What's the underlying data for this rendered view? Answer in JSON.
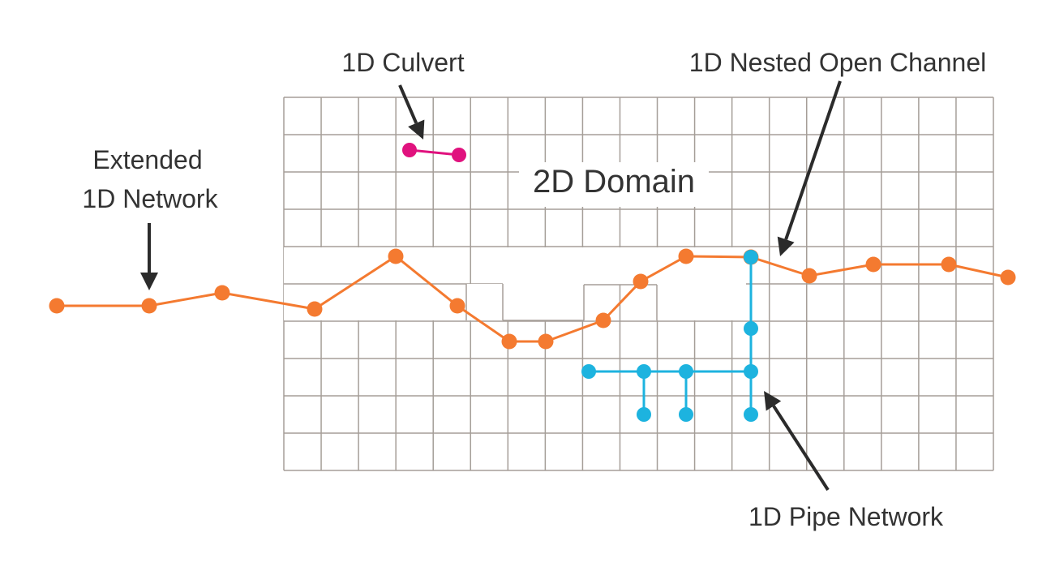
{
  "labels": {
    "culvert": "1D Culvert",
    "nested": "1D Nested Open Channel",
    "extended_line1": "Extended",
    "extended_line2": "1D Network",
    "domain": "2D Domain",
    "pipe": "1D Pipe Network"
  },
  "colors": {
    "grid": "#a59e98",
    "channel": "#f47a30",
    "pipe": "#1db3df",
    "culvert": "#e0127e",
    "arrow": "#2b2b2b",
    "text": "#333333"
  }
}
